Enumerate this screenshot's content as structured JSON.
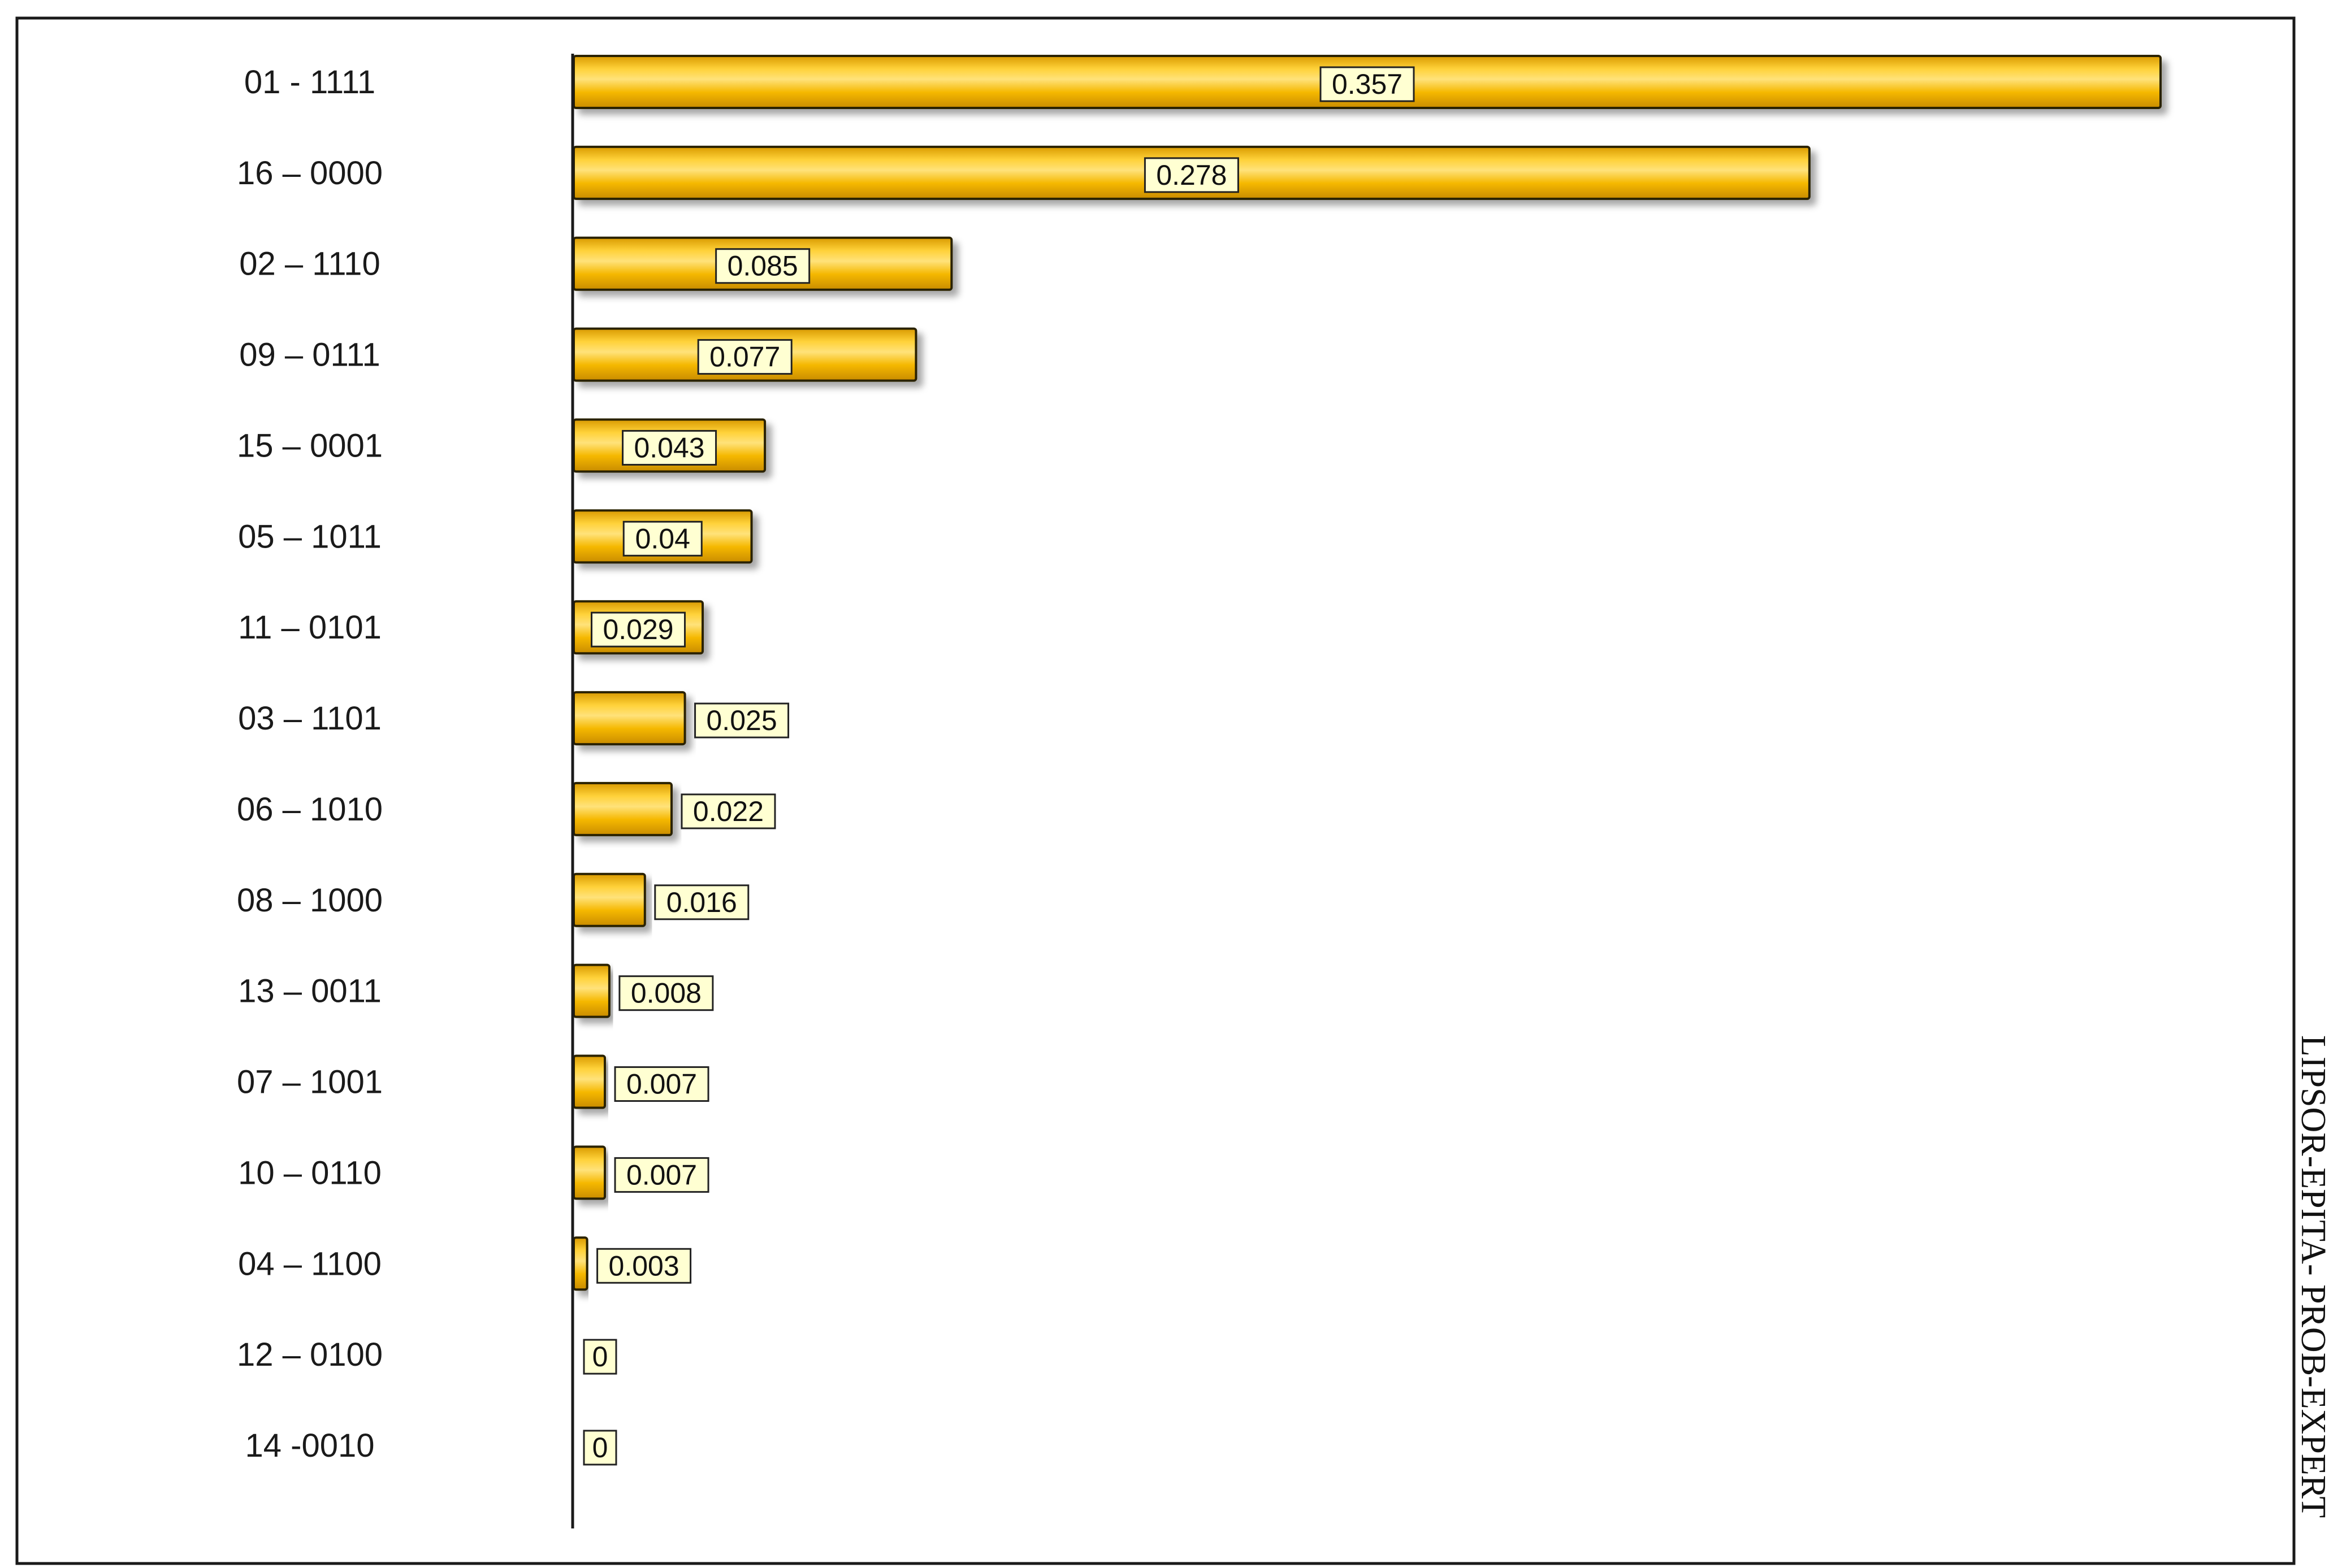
{
  "chart_data": {
    "type": "bar",
    "orientation": "horizontal",
    "title": "",
    "xlabel": "",
    "ylabel": "",
    "categories": [
      "01 - 1111",
      "16 – 0000",
      "02 – 1110",
      "09 – 0111",
      "15 – 0001",
      "05 – 1011",
      "11 – 0101",
      "03 – 1101",
      "06 – 1010",
      "08 – 1000",
      "13 – 0011",
      "07 – 1001",
      "10 – 0110",
      "04 – 1100",
      "12 – 0100",
      "14 -0010"
    ],
    "values": [
      0.357,
      0.278,
      0.085,
      0.077,
      0.043,
      0.04,
      0.029,
      0.025,
      0.022,
      0.016,
      0.008,
      0.007,
      0.007,
      0.003,
      0,
      0
    ],
    "value_labels": [
      "0.357",
      "0.278",
      "0.085",
      "0.077",
      "0.043",
      "0.04",
      "0.029",
      "0.025",
      "0.022",
      "0.016",
      "0.008",
      "0.007",
      "0.007",
      "0.003",
      "0",
      "0"
    ],
    "xlim": [
      0,
      0.357
    ],
    "grid": false,
    "legend": false,
    "bar_color": "#f5b800",
    "bar_highlight": "#ffe27a",
    "bar_shade": "#d99a00",
    "label_box_fill": "#ffffd2"
  },
  "watermark": "LIPSOR-EPITA- PROB-EXPERT"
}
